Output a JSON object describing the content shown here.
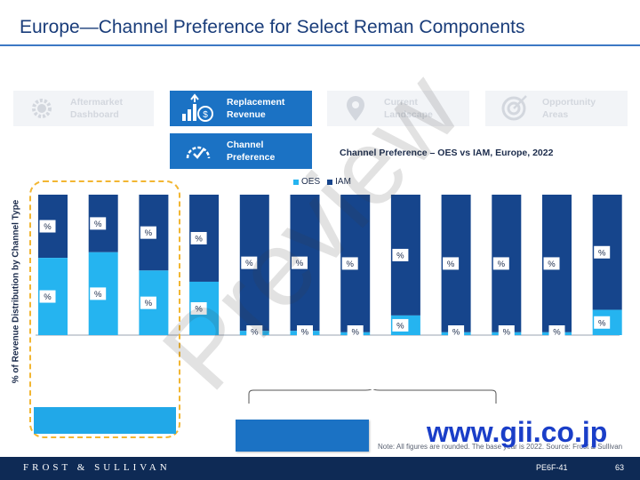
{
  "header": {
    "title": "Europe—Channel Preference for Select Reman Components"
  },
  "nav": {
    "aftermarket_dashboard": "Aftermarket Dashboard",
    "replacement_revenue": "Replacement Revenue",
    "channel_preference": "Channel Preference",
    "current_landscape": "Current Landscape",
    "opportunity_areas": "Opportunity Areas"
  },
  "colors": {
    "oes": "#25b4f0",
    "iam": "#16458c",
    "accent": "#1b72c4",
    "highlight": "#f2b632"
  },
  "chart_data": {
    "type": "bar",
    "stacked": true,
    "title": "Channel Preference – OES vs IAM, Europe, 2022",
    "ylabel": "% of Revenue Distribution by Channel Type",
    "ylim": [
      0,
      100
    ],
    "series": [
      {
        "name": "OES",
        "values": [
          55,
          59,
          46,
          38,
          3,
          3,
          2,
          14,
          2,
          2,
          2,
          18
        ]
      },
      {
        "name": "IAM",
        "values": [
          45,
          41,
          54,
          62,
          97,
          97,
          98,
          86,
          98,
          98,
          98,
          82
        ]
      }
    ],
    "data_labels": [
      "%",
      "%",
      "%",
      "%",
      "%",
      "%",
      "%",
      "%",
      "%",
      "%",
      "%",
      "%"
    ]
  },
  "note": "Note: All figures are rounded. The base year is 2022. Source: Frost & Sullivan",
  "footer": {
    "brand": "FROST & SULLIVAN",
    "code": "PE6F-41",
    "page": "63"
  },
  "watermark": "Preview",
  "gii": "www.gii.co.jp"
}
